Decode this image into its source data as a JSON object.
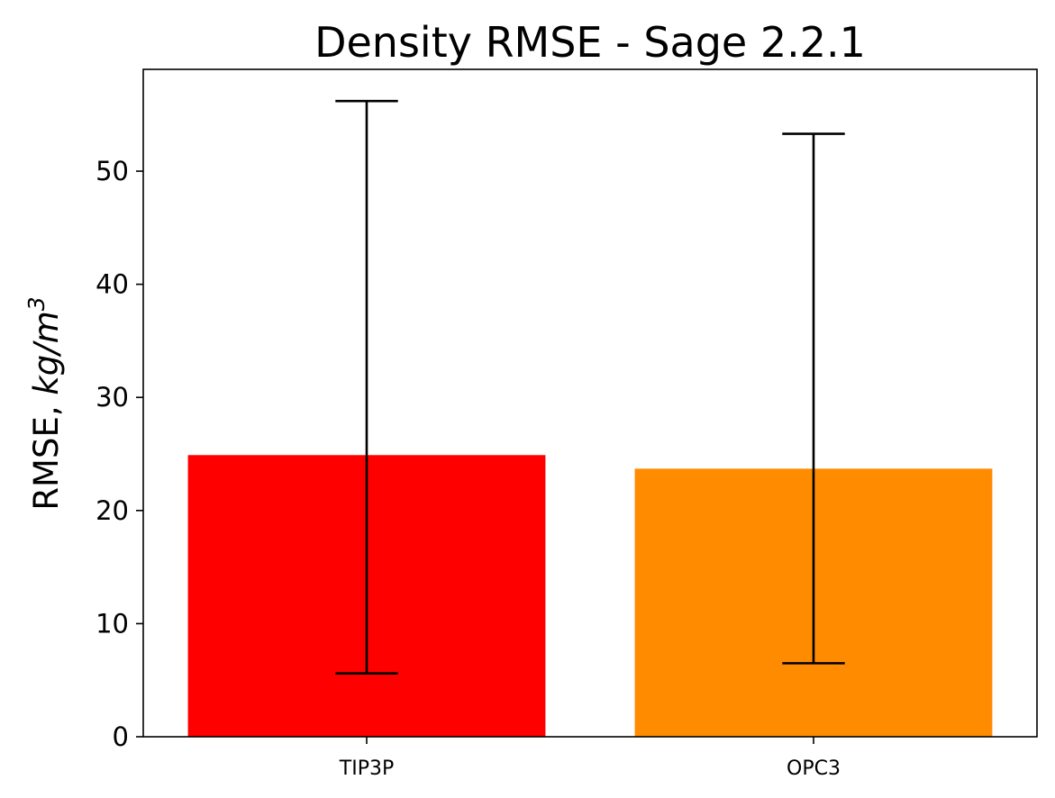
{
  "chart_data": {
    "type": "bar",
    "title": "Density RMSE - Sage 2.2.1",
    "ylabel": {
      "text": "RMSE, ",
      "unit_italic": "kg/m",
      "unit_superscript": "3"
    },
    "xlabel": "",
    "categories": [
      "TIP3P",
      "OPC3"
    ],
    "values": [
      24.9,
      23.7
    ],
    "error_bars": [
      {
        "low": 5.6,
        "high": 56.2
      },
      {
        "low": 6.5,
        "high": 53.3
      }
    ],
    "colors": [
      "#ff0000",
      "#ff8c00"
    ],
    "error_color": "#000000",
    "ylim": [
      0,
      59
    ],
    "yticks": [
      0,
      10,
      20,
      30,
      40,
      50
    ],
    "grid": false,
    "legend": "none"
  }
}
